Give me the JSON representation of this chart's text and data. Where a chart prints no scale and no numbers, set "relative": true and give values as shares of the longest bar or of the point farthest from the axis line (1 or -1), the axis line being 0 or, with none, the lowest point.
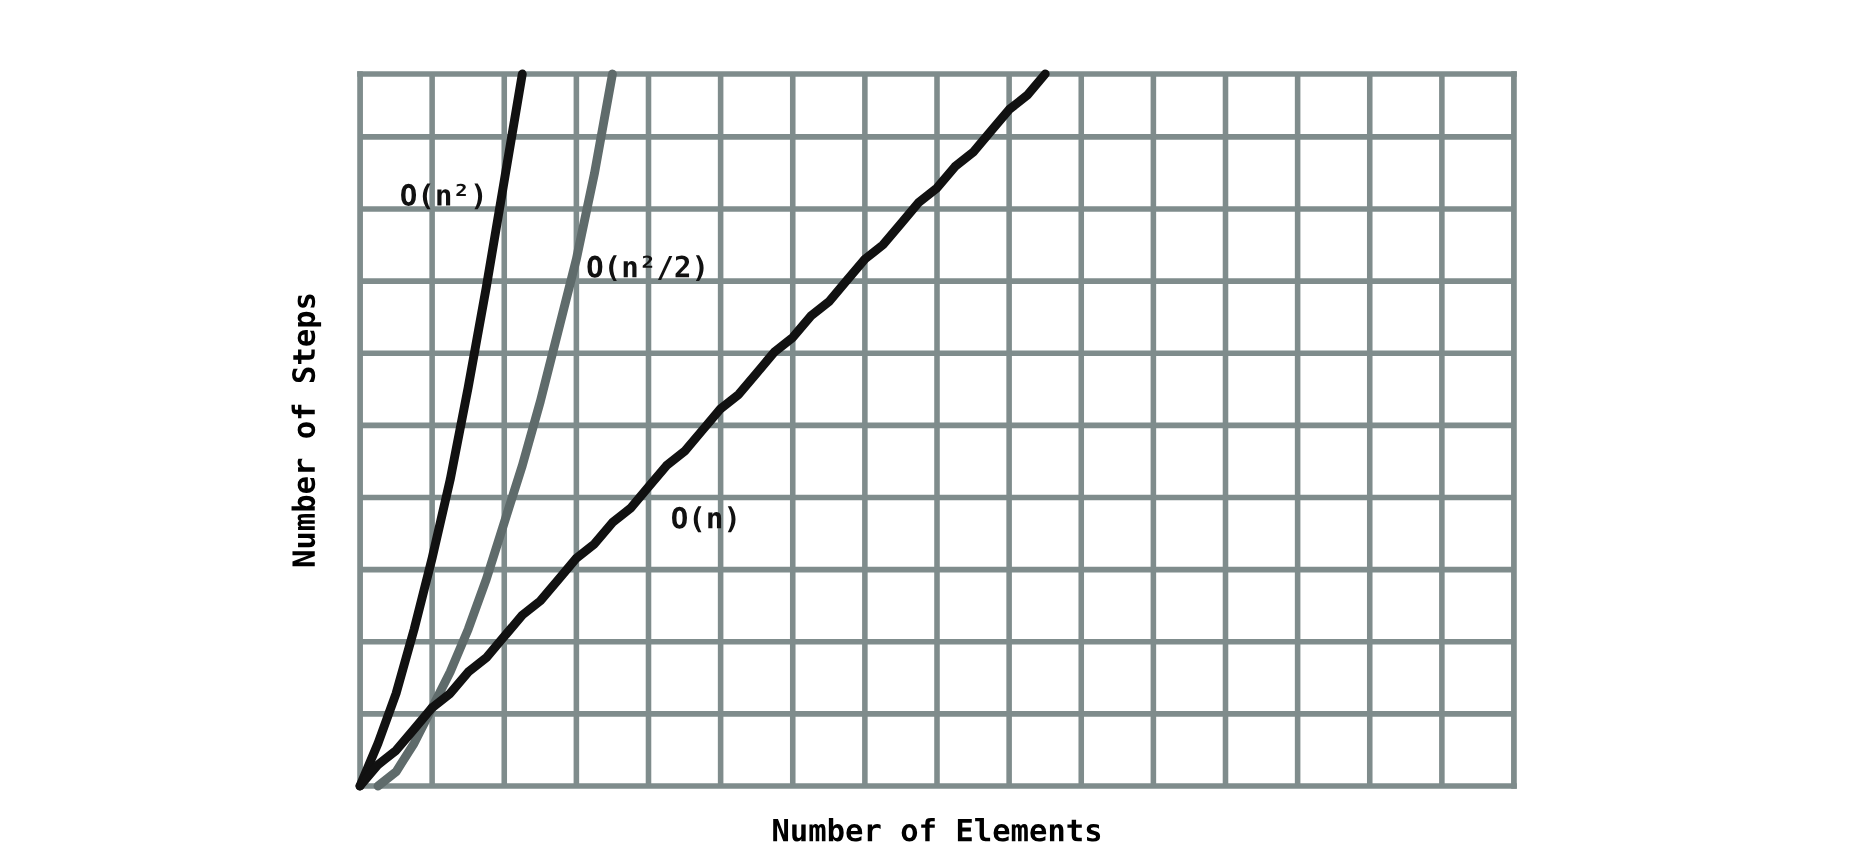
{
  "chart_data": {
    "type": "line",
    "relative": true,
    "xlabel": "Number of Elements",
    "ylabel": "Number of Steps",
    "categories": [
      null,
      null,
      null,
      null,
      null,
      null,
      null,
      null,
      null,
      null,
      null,
      null,
      null,
      null,
      null,
      null,
      null,
      null,
      null,
      null,
      null,
      null,
      null,
      null,
      null,
      null,
      null,
      null,
      null,
      null,
      null,
      null,
      null,
      null,
      null,
      null,
      null,
      null,
      null,
      null,
      null,
      null,
      null,
      null,
      null,
      null,
      null,
      null,
      null,
      null,
      null,
      null,
      null,
      null,
      null,
      null,
      null,
      null,
      null,
      null,
      null,
      null,
      null,
      null,
      null
    ],
    "grid": true,
    "legend": false,
    "marker": "none",
    "line_style": "solid",
    "series": [
      {
        "name": "O(n²)",
        "color": "#111111",
        "values": [
          0,
          0.06,
          0.13,
          0.22,
          0.32,
          0.43,
          0.56,
          0.7,
          0.85,
          1.0,
          null,
          null,
          null,
          null,
          null,
          null,
          null,
          null,
          null,
          null,
          null,
          null,
          null,
          null,
          null,
          null,
          null,
          null,
          null,
          null,
          null,
          null,
          null,
          null,
          null,
          null,
          null,
          null,
          null,
          null,
          null,
          null,
          null,
          null,
          null,
          null,
          null,
          null,
          null,
          null,
          null,
          null,
          null,
          null,
          null,
          null,
          null,
          null,
          null,
          null,
          null,
          null,
          null,
          null,
          null
        ]
      },
      {
        "name": "O(n²/2)",
        "color": "#5f6b6b",
        "values": [
          null,
          0,
          0.02,
          0.06,
          0.11,
          0.16,
          0.22,
          0.29,
          0.37,
          0.45,
          0.54,
          0.64,
          0.74,
          0.86,
          1.0,
          null,
          null,
          null,
          null,
          null,
          null,
          null,
          null,
          null,
          null,
          null,
          null,
          null,
          null,
          null,
          null,
          null,
          null,
          null,
          null,
          null,
          null,
          null,
          null,
          null,
          null,
          null,
          null,
          null,
          null,
          null,
          null,
          null,
          null,
          null,
          null,
          null,
          null,
          null,
          null,
          null,
          null,
          null,
          null,
          null,
          null,
          null,
          null,
          null,
          null
        ]
      },
      {
        "name": "O(n)",
        "color": "#111111",
        "values": [
          0,
          0.03,
          0.05,
          0.08,
          0.11,
          0.13,
          0.16,
          0.18,
          0.21,
          0.24,
          0.26,
          0.29,
          0.32,
          0.34,
          0.37,
          0.39,
          0.42,
          0.45,
          0.47,
          0.5,
          0.53,
          0.55,
          0.58,
          0.61,
          0.63,
          0.66,
          0.68,
          0.71,
          0.74,
          0.76,
          0.79,
          0.82,
          0.84,
          0.87,
          0.89,
          0.92,
          0.95,
          0.97,
          1.0,
          null,
          null,
          null,
          null,
          null,
          null,
          null,
          null,
          null,
          null,
          null,
          null,
          null,
          null,
          null,
          null,
          null,
          null,
          null,
          null,
          null,
          null,
          null,
          null,
          null,
          null
        ]
      }
    ]
  }
}
